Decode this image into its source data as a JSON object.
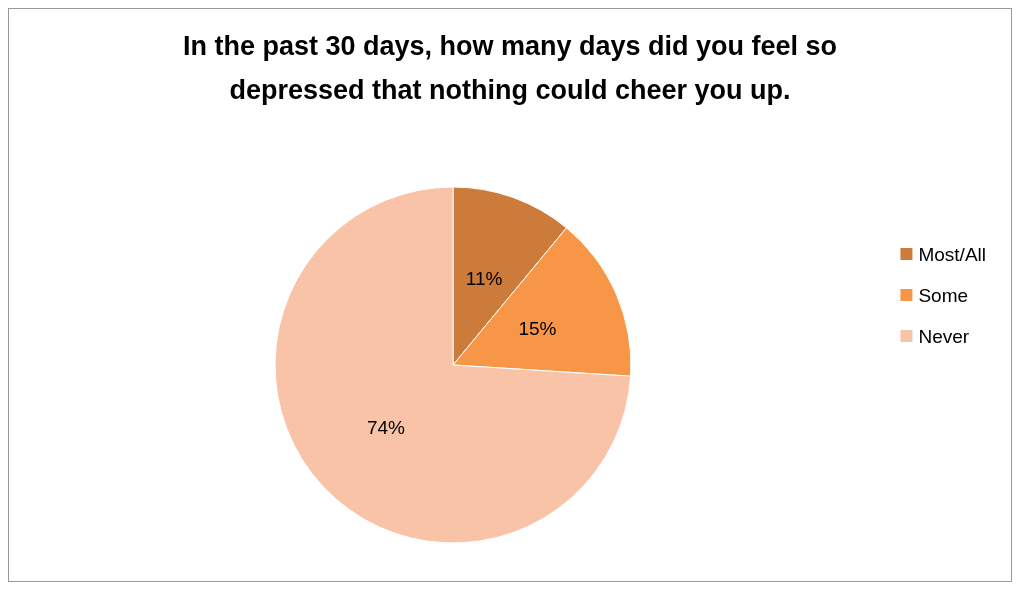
{
  "chart_data": {
    "type": "pie",
    "title": "In the past 30 days, how many days did you feel so\ndepressed that nothing could cheer you up.",
    "categories": [
      "Most/All",
      "Some",
      "Never"
    ],
    "values": [
      11,
      15,
      74
    ],
    "colors": [
      "#cd7b3a",
      "#f79646",
      "#f9c3a8"
    ],
    "value_labels": [
      "11%",
      "15%",
      "74%"
    ],
    "legend": "right"
  }
}
